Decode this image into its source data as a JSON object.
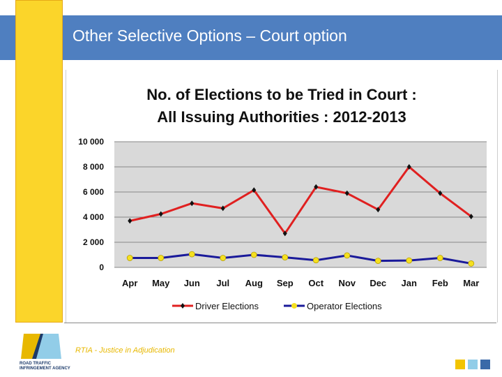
{
  "slide": {
    "title": "Other Selective Options – Court option",
    "footer": "RTIA - Justice in Adjudication",
    "logo_text": "ROAD TRAFFIC INFRINGEMENT AGENCY",
    "accent_colors": [
      "#f2c400",
      "#92cde8",
      "#3a6aa8"
    ]
  },
  "chart_data": {
    "type": "line",
    "title": "No. of Elections to be Tried in Court :",
    "subtitle": "All Issuing Authorities : 2012-2013",
    "categories": [
      "Apr",
      "May",
      "Jun",
      "Jul",
      "Aug",
      "Sep",
      "Oct",
      "Nov",
      "Dec",
      "Jan",
      "Feb",
      "Mar"
    ],
    "ylim": [
      0,
      10000
    ],
    "yticks": [
      "0",
      "2 000",
      "4 000",
      "6 000",
      "8 000",
      "10 000"
    ],
    "grid": true,
    "legend": "bottom",
    "series": [
      {
        "name": "Driver Elections",
        "color": "#e02020",
        "marker_color": "#111111",
        "values": [
          3700,
          4250,
          5100,
          4700,
          6150,
          2700,
          6400,
          5900,
          4600,
          8000,
          5900,
          4050
        ]
      },
      {
        "name": "Operator Elections",
        "color": "#1a1a9a",
        "marker_color": "#f5e020",
        "values": [
          750,
          750,
          1050,
          750,
          1000,
          800,
          570,
          950,
          520,
          550,
          750,
          310
        ]
      }
    ]
  }
}
